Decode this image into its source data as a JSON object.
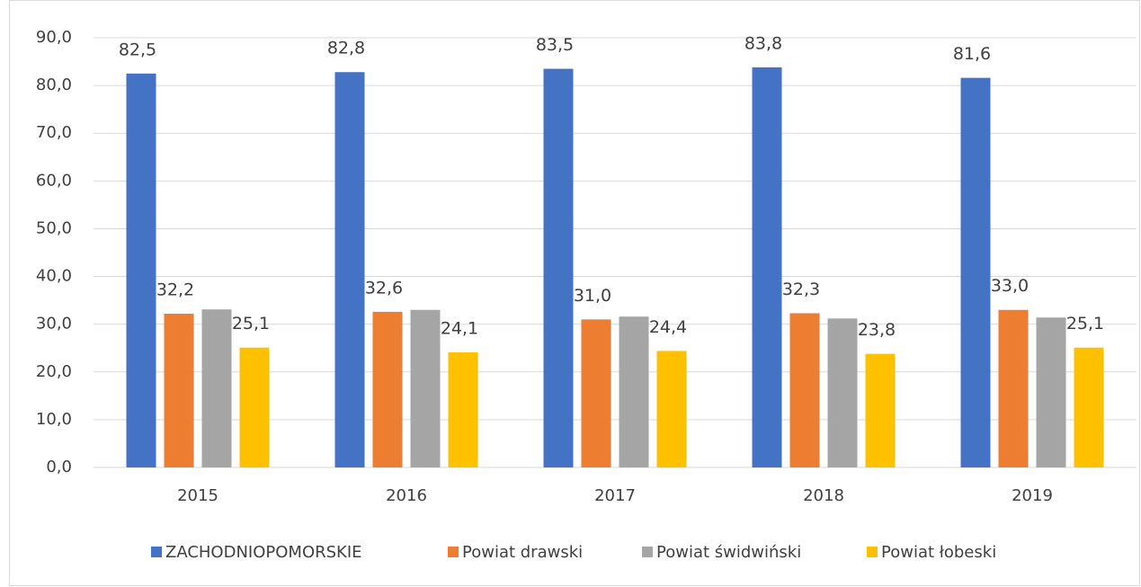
{
  "chart_data": {
    "type": "bar",
    "categories": [
      "2015",
      "2016",
      "2017",
      "2018",
      "2019"
    ],
    "series": [
      {
        "name": "ZACHODNIOPOMORSKIE",
        "color": "#4472c4",
        "values": [
          82.5,
          82.8,
          83.5,
          83.8,
          81.6
        ],
        "value_labels": [
          "82,5",
          "82,8",
          "83,5",
          "83,8",
          "81,6"
        ]
      },
      {
        "name": "Powiat drawski",
        "color": "#ed7d31",
        "values": [
          32.2,
          32.6,
          31.0,
          32.3,
          33.0
        ],
        "value_labels": [
          "32,2",
          "32,6",
          "31,0",
          "32,3",
          "33,0"
        ]
      },
      {
        "name": "Powiat świdwiński",
        "color": "#a5a5a5",
        "values": [
          33.1,
          33.0,
          31.6,
          31.2,
          31.4
        ]
      },
      {
        "name": "Powiat łobeski",
        "color": "#ffc000",
        "values": [
          25.1,
          24.1,
          24.4,
          23.8,
          25.1
        ],
        "value_labels": [
          "25,1",
          "24,1",
          "24,4",
          "23,8",
          "25,1"
        ]
      }
    ],
    "ylim": [
      0,
      90
    ],
    "yticks": [
      {
        "value": 0,
        "label": "0,0"
      },
      {
        "value": 10,
        "label": "10,0"
      },
      {
        "value": 20,
        "label": "20,0"
      },
      {
        "value": 30,
        "label": "30,0"
      },
      {
        "value": 40,
        "label": "40,0"
      },
      {
        "value": 50,
        "label": "50,0"
      },
      {
        "value": 60,
        "label": "60,0"
      },
      {
        "value": 70,
        "label": "70,0"
      },
      {
        "value": 80,
        "label": "80,0"
      },
      {
        "value": 90,
        "label": "90,0"
      }
    ],
    "grid": true,
    "legend": "bottom"
  }
}
